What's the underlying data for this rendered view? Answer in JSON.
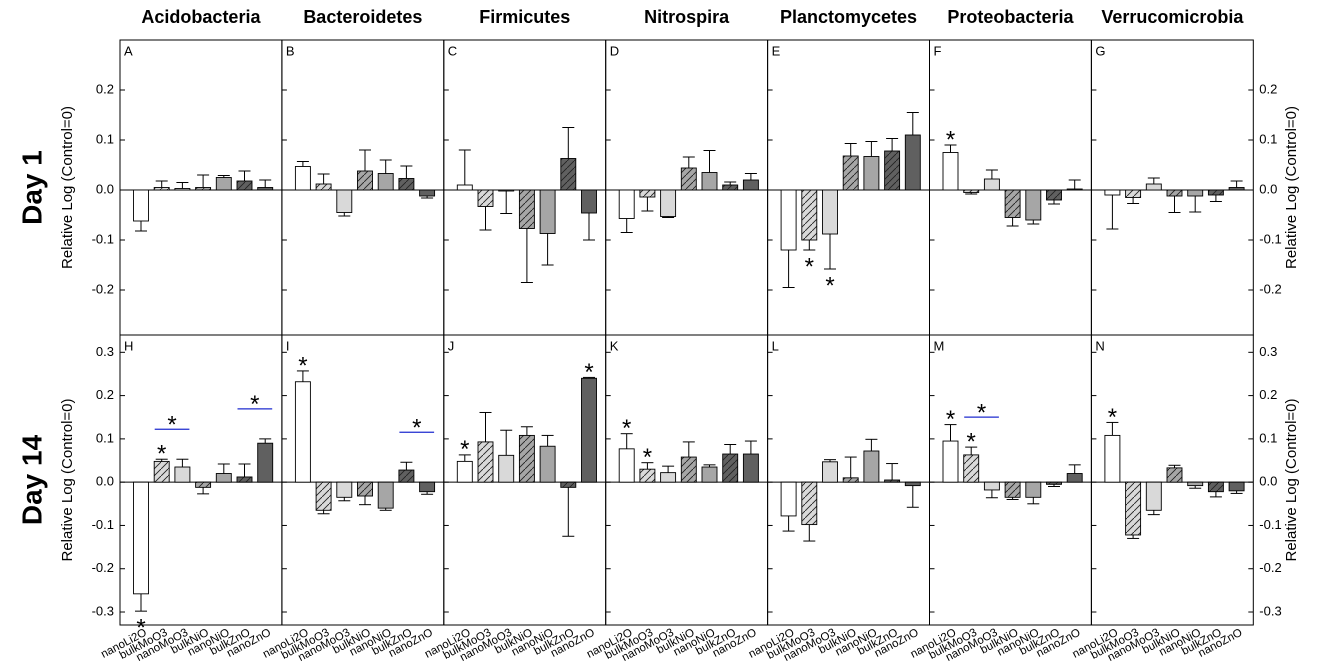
{
  "columns": [
    "Acidobacteria",
    "Bacteroidetes",
    "Firmicutes",
    "Nitrospira",
    "Planctomycetes",
    "Proteobacteria",
    "Verrucomicrobia"
  ],
  "rows": [
    "Day 1",
    "Day 14"
  ],
  "ylabel": "Relative Log (Control=0)",
  "bar_colors": [
    "#ffffff",
    "#d9d9d9",
    "#d9d9d9",
    "#a6a6a6",
    "#a6a6a6",
    "#606060",
    "#606060"
  ],
  "bar_hatched": [
    false,
    true,
    false,
    true,
    false,
    true,
    false
  ],
  "chart_data": [
    {
      "type": "bar",
      "panel": "A",
      "ylim": [
        -0.29,
        0.3
      ],
      "yticks": [
        -0.2,
        -0.1,
        {
          "value": 0,
          "label": "0.0"
        },
        0.1,
        0.2
      ],
      "values": [
        -0.062,
        0.005,
        0.003,
        0.005,
        0.025,
        0.018,
        0.005
      ],
      "errors": [
        0.02,
        0.013,
        0.012,
        0.025,
        0.004,
        0.02,
        0.015
      ]
    },
    {
      "type": "bar",
      "panel": "B",
      "ylim": [
        -0.29,
        0.3
      ],
      "values": [
        0.047,
        0.012,
        -0.045,
        0.038,
        0.033,
        0.023,
        -0.012
      ],
      "errors": [
        0.01,
        0.02,
        0.007,
        0.042,
        0.027,
        0.025,
        0.004
      ]
    },
    {
      "type": "bar",
      "panel": "C",
      "ylim": [
        -0.29,
        0.3
      ],
      "values": [
        0.01,
        -0.033,
        -0.002,
        -0.077,
        -0.087,
        0.063,
        -0.046
      ],
      "errors": [
        0.07,
        0.047,
        0.045,
        0.108,
        0.063,
        0.062,
        0.054
      ]
    },
    {
      "type": "bar",
      "panel": "D",
      "ylim": [
        -0.29,
        0.3
      ],
      "values": [
        -0.057,
        -0.014,
        -0.053,
        0.044,
        0.035,
        0.01,
        0.02
      ],
      "errors": [
        0.028,
        0.028,
        0.002,
        0.022,
        0.044,
        0.006,
        0.013
      ]
    },
    {
      "type": "bar",
      "panel": "E",
      "ylim": [
        -0.29,
        0.3
      ],
      "values": [
        -0.12,
        -0.1,
        -0.088,
        0.068,
        0.067,
        0.078,
        0.11
      ],
      "errors": [
        0.075,
        0.02,
        0.07,
        0.025,
        0.03,
        0.025,
        0.045
      ],
      "stars": [
        {
          "bar": 1,
          "text": "*",
          "color": "#e8262b"
        },
        {
          "bar": 2,
          "text": "*",
          "color": "#e8262b"
        }
      ]
    },
    {
      "type": "bar",
      "panel": "F",
      "ylim": [
        -0.29,
        0.3
      ],
      "values": [
        0.075,
        -0.005,
        0.022,
        -0.055,
        -0.06,
        -0.02,
        0.002
      ],
      "errors": [
        0.015,
        0.003,
        0.018,
        0.017,
        0.008,
        0.008,
        0.018
      ],
      "stars": [
        {
          "bar": 0,
          "text": "*",
          "color": "#e8262b"
        }
      ]
    },
    {
      "type": "bar",
      "panel": "G",
      "ylim": [
        -0.29,
        0.3
      ],
      "yticks": [
        -0.2,
        -0.1,
        {
          "value": 0,
          "label": "0.0"
        },
        0.1,
        0.2
      ],
      "values": [
        -0.01,
        -0.015,
        0.012,
        -0.012,
        -0.012,
        -0.01,
        0.005
      ],
      "errors": [
        0.068,
        0.012,
        0.012,
        0.033,
        0.032,
        0.013,
        0.013
      ]
    },
    {
      "type": "bar",
      "panel": "H",
      "ylim": [
        -0.33,
        0.34
      ],
      "yticks": [
        -0.3,
        -0.2,
        -0.1,
        {
          "value": 0,
          "label": "0.0"
        },
        0.1,
        0.2,
        0.3
      ],
      "categories": [
        "nanoLi2O",
        "bulkMoO3",
        "nanoMoO3",
        "bulkNiO",
        "nanoNiO",
        "bulkZnO",
        "nanoZnO"
      ],
      "values": [
        -0.258,
        0.048,
        0.035,
        -0.012,
        0.02,
        0.012,
        0.09
      ],
      "errors": [
        0.04,
        0.005,
        0.018,
        0.015,
        0.022,
        0.03,
        0.01
      ],
      "stars": [
        {
          "bar": 0,
          "text": "*",
          "color": "#e8262b"
        },
        {
          "bar": 1,
          "text": "*",
          "color": "#e8262b"
        }
      ],
      "brackets": [
        {
          "bars": [
            1,
            2
          ],
          "text": "*",
          "color": "#1f2ccf"
        },
        {
          "bars": [
            5,
            6
          ],
          "text": "*",
          "color": "#1f2ccf"
        }
      ]
    },
    {
      "type": "bar",
      "panel": "I",
      "ylim": [
        -0.33,
        0.34
      ],
      "categories": [
        "nanoLi2O",
        "bulkMoO3",
        "nanoMoO3",
        "bulkNiO",
        "nanoNiO",
        "bulkZnO",
        "nanoZnO"
      ],
      "values": [
        0.232,
        -0.065,
        -0.035,
        -0.032,
        -0.06,
        0.028,
        -0.022
      ],
      "errors": [
        0.025,
        0.008,
        0.008,
        0.02,
        0.005,
        0.018,
        0.006
      ],
      "stars": [
        {
          "bar": 0,
          "text": "*",
          "color": "#e8262b"
        }
      ],
      "brackets": [
        {
          "bars": [
            5,
            6
          ],
          "text": "*",
          "color": "#1f2ccf"
        }
      ]
    },
    {
      "type": "bar",
      "panel": "J",
      "ylim": [
        -0.33,
        0.34
      ],
      "categories": [
        "nanoLi2O",
        "bulkMoO3",
        "nanoMoO3",
        "bulkNiO",
        "nanoNiO",
        "bulkZnO",
        "nanoZnO"
      ],
      "values": [
        0.048,
        0.093,
        0.062,
        0.108,
        0.083,
        -0.012,
        0.24
      ],
      "errors": [
        0.015,
        0.068,
        0.058,
        0.02,
        0.025,
        0.113,
        0.002
      ],
      "stars": [
        {
          "bar": 0,
          "text": "*",
          "color": "#e8262b"
        },
        {
          "bar": 6,
          "text": "*",
          "color": "#e8262b"
        }
      ]
    },
    {
      "type": "bar",
      "panel": "K",
      "ylim": [
        -0.33,
        0.34
      ],
      "categories": [
        "nanoLi2O",
        "bulkMoO3",
        "nanoMoO3",
        "bulkNiO",
        "nanoNiO",
        "bulkZnO",
        "nanoZnO"
      ],
      "values": [
        0.077,
        0.03,
        0.022,
        0.058,
        0.035,
        0.065,
        0.065
      ],
      "errors": [
        0.035,
        0.015,
        0.015,
        0.035,
        0.005,
        0.022,
        0.03
      ],
      "stars": [
        {
          "bar": 0,
          "text": "*",
          "color": "#e8262b"
        },
        {
          "bar": 1,
          "text": "*",
          "color": "#e8262b"
        }
      ]
    },
    {
      "type": "bar",
      "panel": "L",
      "ylim": [
        -0.33,
        0.34
      ],
      "categories": [
        "nanoLi2O",
        "bulkMoO3",
        "nanoMoO3",
        "bulkNiO",
        "nanoNiO",
        "bulkZnO",
        "nanoZnO"
      ],
      "values": [
        -0.078,
        -0.098,
        0.047,
        0.01,
        0.072,
        0.005,
        -0.008
      ],
      "errors": [
        0.035,
        0.038,
        0.005,
        0.048,
        0.027,
        0.038,
        0.05
      ]
    },
    {
      "type": "bar",
      "panel": "M",
      "ylim": [
        -0.33,
        0.34
      ],
      "categories": [
        "nanoLi2O",
        "bulkMoO3",
        "nanoMoO3",
        "bulkNiO",
        "nanoNiO",
        "bulkZnO",
        "nanoZnO"
      ],
      "values": [
        0.095,
        0.063,
        -0.018,
        -0.035,
        -0.035,
        -0.005,
        0.02
      ],
      "errors": [
        0.038,
        0.018,
        0.018,
        0.005,
        0.015,
        0.005,
        0.02
      ],
      "stars": [
        {
          "bar": 0,
          "text": "*",
          "color": "#e8262b"
        },
        {
          "bar": 1,
          "text": "*",
          "color": "#e8262b"
        }
      ],
      "brackets": [
        {
          "bars": [
            1,
            2
          ],
          "text": "*",
          "color": "#1f2ccf"
        }
      ]
    },
    {
      "type": "bar",
      "panel": "N",
      "ylim": [
        -0.33,
        0.34
      ],
      "yticks": [
        -0.3,
        -0.2,
        -0.1,
        {
          "value": 0,
          "label": "0.0"
        },
        0.1,
        0.2,
        0.3
      ],
      "categories": [
        "nanoLi2O",
        "bulkMoO3",
        "nanoMoO3",
        "bulkNiO",
        "nanoNiO",
        "bulkZnO",
        "nanoZnO"
      ],
      "values": [
        0.108,
        -0.122,
        -0.065,
        0.033,
        -0.008,
        -0.022,
        -0.02
      ],
      "errors": [
        0.03,
        0.008,
        0.01,
        0.006,
        0.006,
        0.012,
        0.006
      ],
      "stars": [
        {
          "bar": 0,
          "text": "*",
          "color": "#e8262b"
        }
      ]
    }
  ]
}
